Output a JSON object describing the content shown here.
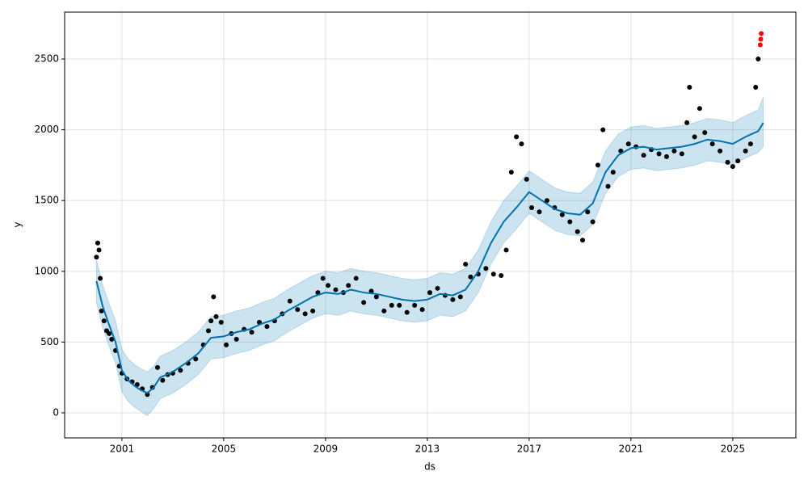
{
  "chart_data": {
    "type": "forecast",
    "xlabel": "ds",
    "ylabel": "y",
    "xlim": [
      1998.75,
      2027.48
    ],
    "ylim": [
      -177,
      2831
    ],
    "xticks": [
      2001,
      2005,
      2009,
      2013,
      2017,
      2021,
      2025
    ],
    "yticks": [
      0,
      500,
      1000,
      1500,
      2000,
      2500
    ],
    "grid": true,
    "forecast": {
      "color": "#0072b2",
      "band_color": "#0072b2",
      "x": [
        2000.0,
        2000.25,
        2000.5,
        2000.75,
        2001.0,
        2001.25,
        2001.5,
        2001.75,
        2002.0,
        2002.25,
        2002.5,
        2003.0,
        2003.5,
        2004.0,
        2004.5,
        2005.0,
        2005.5,
        2006.0,
        2006.5,
        2007.0,
        2007.5,
        2008.0,
        2008.5,
        2009.0,
        2009.5,
        2010.0,
        2010.5,
        2011.0,
        2011.5,
        2012.0,
        2012.5,
        2013.0,
        2013.5,
        2014.0,
        2014.5,
        2015.0,
        2015.5,
        2016.0,
        2016.5,
        2017.0,
        2017.5,
        2018.0,
        2018.5,
        2019.0,
        2019.5,
        2020.0,
        2020.5,
        2021.0,
        2021.5,
        2022.0,
        2022.5,
        2023.0,
        2023.5,
        2024.0,
        2024.5,
        2025.0,
        2025.5,
        2026.0,
        2026.2
      ],
      "values": [
        930,
        750,
        620,
        500,
        300,
        230,
        190,
        160,
        140,
        180,
        250,
        290,
        350,
        420,
        530,
        540,
        570,
        590,
        630,
        660,
        720,
        770,
        820,
        850,
        840,
        870,
        850,
        840,
        820,
        800,
        790,
        800,
        840,
        830,
        870,
        1000,
        1200,
        1350,
        1450,
        1560,
        1500,
        1440,
        1410,
        1400,
        1480,
        1700,
        1820,
        1870,
        1880,
        1860,
        1870,
        1880,
        1900,
        1930,
        1920,
        1900,
        1950,
        1990,
        2050
      ],
      "lower": [
        780,
        600,
        470,
        350,
        150,
        80,
        40,
        10,
        -20,
        30,
        100,
        140,
        200,
        270,
        380,
        390,
        420,
        440,
        480,
        510,
        570,
        620,
        670,
        700,
        690,
        720,
        700,
        690,
        670,
        650,
        640,
        650,
        690,
        680,
        720,
        850,
        1050,
        1200,
        1300,
        1410,
        1350,
        1290,
        1260,
        1250,
        1330,
        1550,
        1670,
        1720,
        1730,
        1710,
        1720,
        1730,
        1750,
        1780,
        1770,
        1750,
        1800,
        1840,
        1880
      ],
      "upper": [
        1080,
        900,
        770,
        650,
        450,
        380,
        340,
        310,
        290,
        330,
        400,
        440,
        500,
        570,
        680,
        690,
        720,
        740,
        780,
        810,
        870,
        920,
        970,
        1000,
        990,
        1020,
        1000,
        990,
        970,
        950,
        940,
        950,
        990,
        980,
        1020,
        1150,
        1350,
        1500,
        1600,
        1710,
        1650,
        1590,
        1560,
        1550,
        1630,
        1850,
        1970,
        2020,
        2030,
        2010,
        2020,
        2030,
        2050,
        2080,
        2070,
        2050,
        2100,
        2140,
        2230
      ]
    },
    "points": {
      "color": "#000000",
      "x": [
        2000.0,
        2000.05,
        2000.1,
        2000.15,
        2000.2,
        2000.3,
        2000.4,
        2000.5,
        2000.6,
        2000.75,
        2000.9,
        2001.0,
        2001.2,
        2001.4,
        2001.6,
        2001.8,
        2002.0,
        2002.2,
        2002.4,
        2002.6,
        2002.8,
        2003.0,
        2003.3,
        2003.6,
        2003.9,
        2004.2,
        2004.4,
        2004.5,
        2004.6,
        2004.7,
        2004.9,
        2005.1,
        2005.3,
        2005.5,
        2005.8,
        2006.1,
        2006.4,
        2006.7,
        2007.0,
        2007.3,
        2007.6,
        2007.9,
        2008.2,
        2008.5,
        2008.7,
        2008.9,
        2009.1,
        2009.4,
        2009.7,
        2009.9,
        2010.2,
        2010.5,
        2010.8,
        2011.0,
        2011.3,
        2011.6,
        2011.9,
        2012.2,
        2012.5,
        2012.8,
        2013.1,
        2013.4,
        2013.7,
        2014.0,
        2014.3,
        2014.5,
        2014.7,
        2015.0,
        2015.3,
        2015.6,
        2015.9,
        2016.1,
        2016.3,
        2016.5,
        2016.7,
        2016.9,
        2017.1,
        2017.4,
        2017.7,
        2018.0,
        2018.3,
        2018.6,
        2018.9,
        2019.1,
        2019.3,
        2019.5,
        2019.7,
        2019.9,
        2020.1,
        2020.3,
        2020.6,
        2020.9,
        2021.2,
        2021.5,
        2021.8,
        2022.1,
        2022.4,
        2022.7,
        2023.0,
        2023.2,
        2023.3,
        2023.5,
        2023.7,
        2023.9,
        2024.2,
        2024.5,
        2024.8,
        2025.0,
        2025.2,
        2025.5,
        2025.7,
        2025.9,
        2026.0
      ],
      "values": [
        1100,
        1200,
        1150,
        950,
        720,
        650,
        580,
        560,
        520,
        440,
        330,
        280,
        240,
        220,
        200,
        170,
        130,
        180,
        320,
        230,
        270,
        280,
        300,
        350,
        380,
        480,
        580,
        650,
        820,
        680,
        640,
        480,
        560,
        520,
        590,
        570,
        640,
        610,
        650,
        700,
        790,
        730,
        700,
        720,
        850,
        950,
        900,
        870,
        850,
        900,
        950,
        780,
        860,
        820,
        720,
        760,
        760,
        710,
        760,
        730,
        850,
        880,
        830,
        800,
        820,
        1050,
        960,
        980,
        1020,
        980,
        970,
        1150,
        1700,
        1950,
        1900,
        1650,
        1450,
        1420,
        1500,
        1450,
        1400,
        1350,
        1280,
        1220,
        1420,
        1350,
        1750,
        2000,
        1600,
        1700,
        1850,
        1900,
        1880,
        1820,
        1860,
        1830,
        1810,
        1850,
        1830,
        2050,
        2300,
        1950,
        2150,
        1980,
        1900,
        1850,
        1770,
        1740,
        1780,
        1850,
        1900,
        2300,
        2500
      ]
    },
    "anomalies": {
      "color": "#ff0000",
      "x": [
        2026.08,
        2026.1,
        2026.12
      ],
      "values": [
        2600,
        2640,
        2680
      ]
    }
  }
}
